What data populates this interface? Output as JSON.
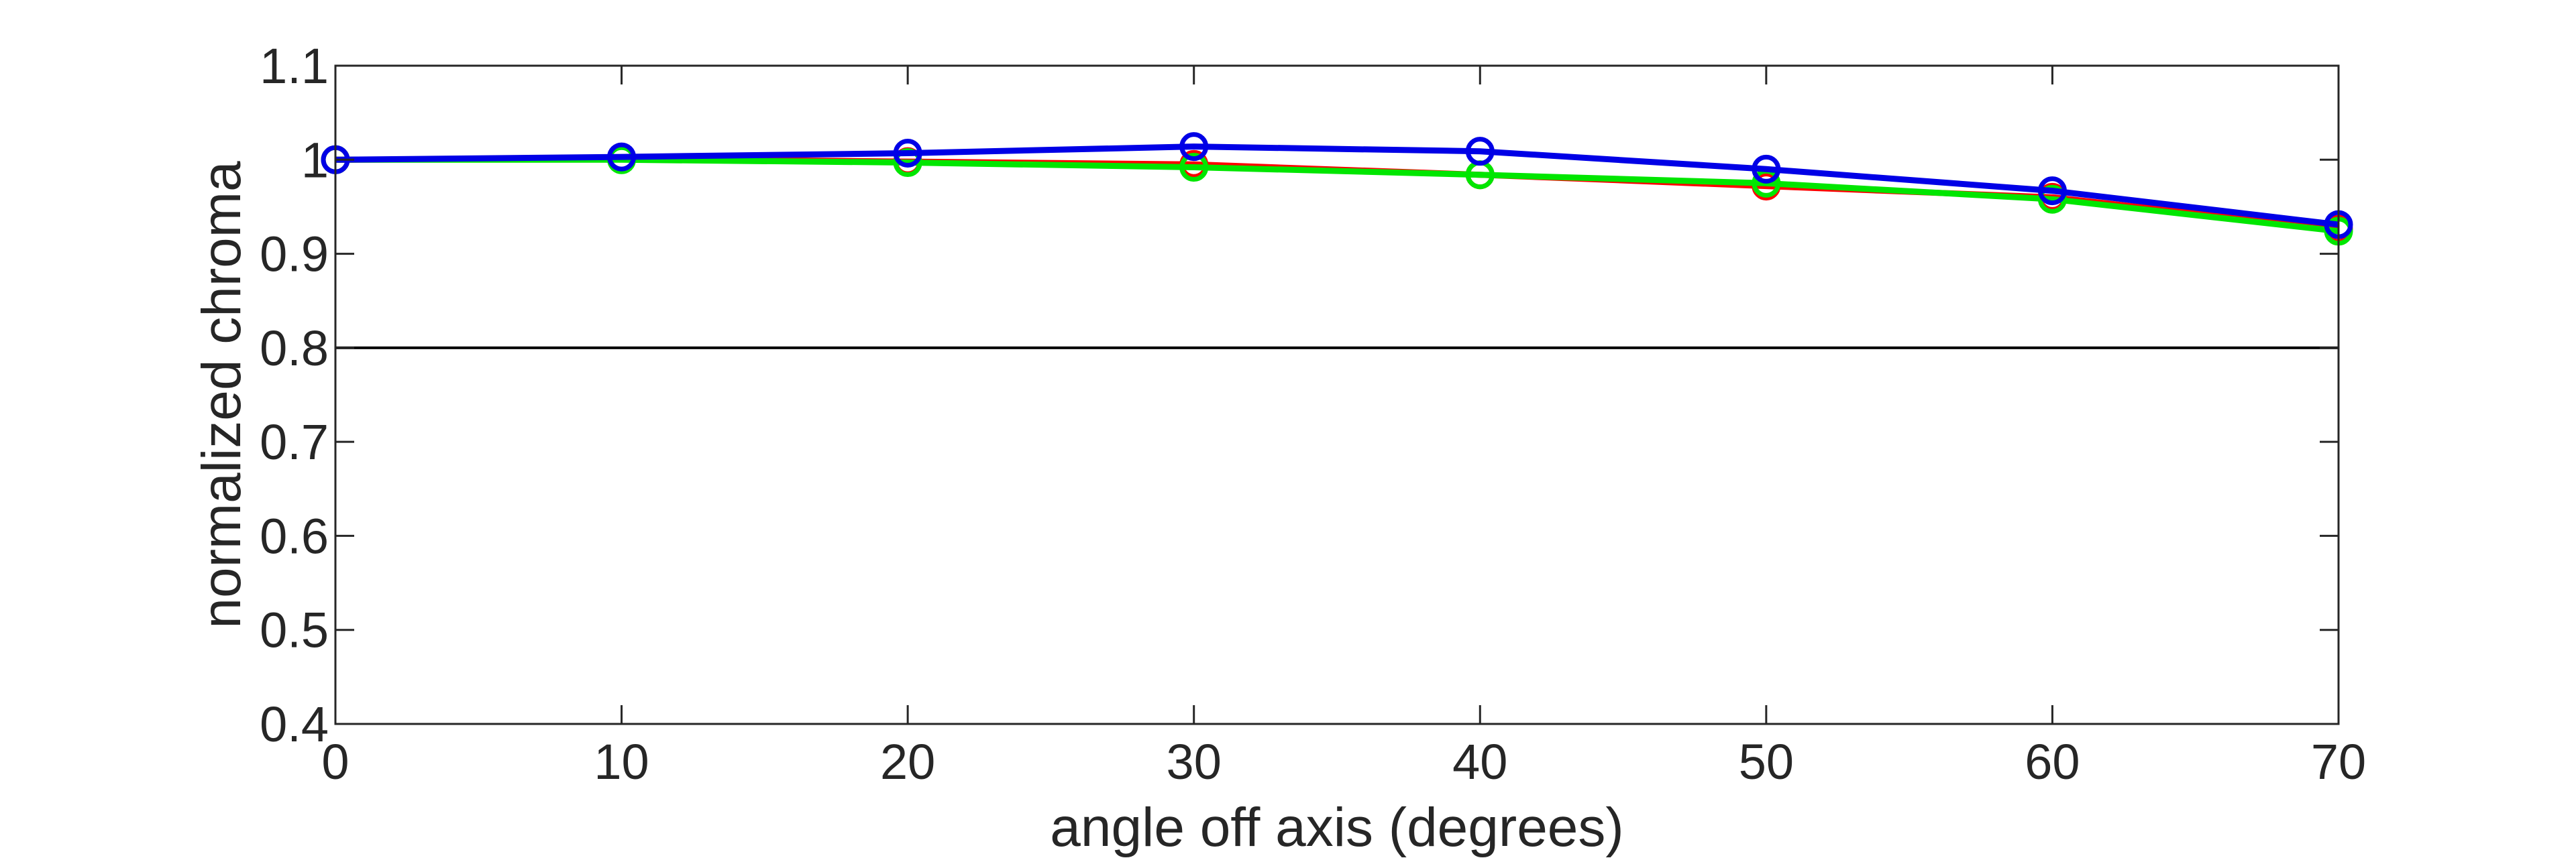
{
  "chart_data": {
    "type": "line",
    "title": "",
    "xlabel": "angle off axis (degrees)",
    "ylabel": "normalized chroma",
    "xlim": [
      0,
      70
    ],
    "ylim": [
      0.4,
      1.1
    ],
    "x_ticks": [
      "0",
      "10",
      "20",
      "30",
      "40",
      "50",
      "60",
      "70"
    ],
    "y_ticks": [
      "0.4",
      "0.5",
      "0.6",
      "0.7",
      "0.8",
      "0.9",
      "1",
      "1.1"
    ],
    "grid": false,
    "reference_line": {
      "y": 0.8,
      "color": "#000000"
    },
    "x": [
      0,
      10,
      20,
      30,
      40,
      50,
      60,
      70
    ],
    "series": [
      {
        "color": "#ff0000",
        "marker": "circle",
        "values": [
          1.0,
          1.001,
          0.998,
          0.995,
          0.984,
          0.972,
          0.96,
          0.926
        ]
      },
      {
        "color": "#00e600",
        "marker": "circle",
        "values": [
          1.0,
          1.0,
          0.997,
          0.992,
          0.984,
          0.975,
          0.958,
          0.924
        ]
      },
      {
        "color": "#0000e6",
        "marker": "circle",
        "values": [
          1.0,
          1.003,
          1.007,
          1.014,
          1.009,
          0.99,
          0.967,
          0.931
        ]
      }
    ]
  }
}
